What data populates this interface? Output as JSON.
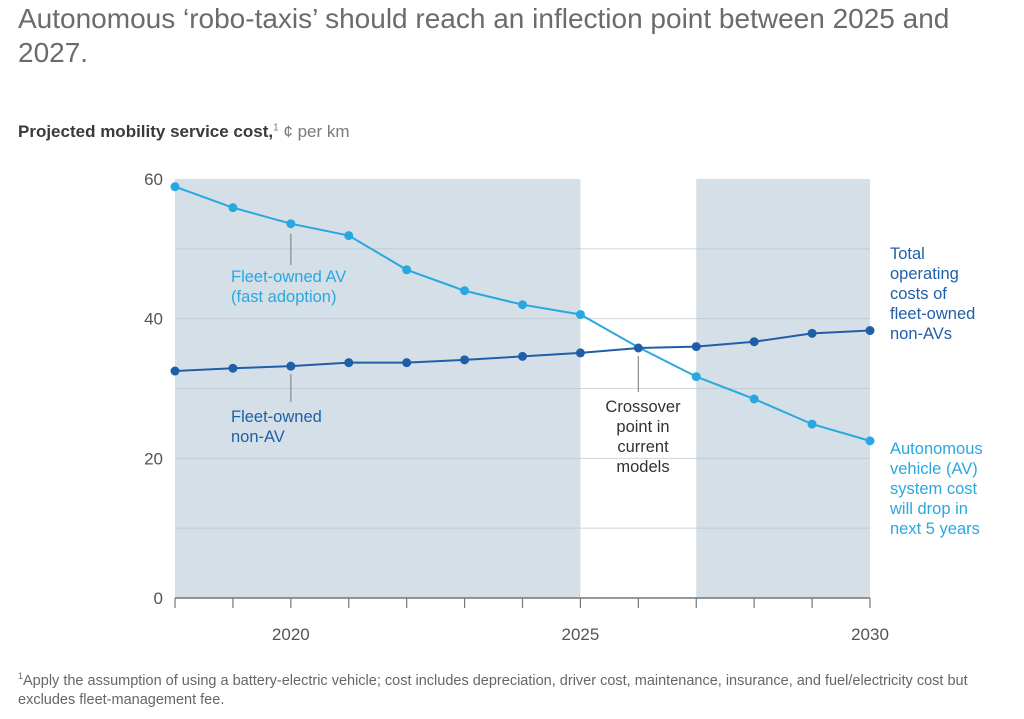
{
  "title": "Autonomous ‘robo-taxis’ should reach an inflection point between 2025 and 2027.",
  "subtitle": {
    "bold": "Projected mobility service cost,",
    "footnote_mark": "1",
    "unit": " ¢ per km"
  },
  "footnote": {
    "mark": "1",
    "text": "Apply the assumption of using a battery-electric vehicle; cost includes depreciation, driver cost, maintenance, insurance, and fuel/electricity cost but excludes fleet-management fee."
  },
  "colors": {
    "av": "#29a8e0",
    "non_av": "#1f5fa8",
    "shade": "#d5dfe7",
    "grid": "#b9c3cb",
    "axis": "#777777"
  },
  "chart_data": {
    "type": "line",
    "title": "Projected mobility service cost, ¢ per km",
    "xlabel": "",
    "ylabel": "¢ per km",
    "x": [
      2018,
      2019,
      2020,
      2021,
      2022,
      2023,
      2024,
      2025,
      2026,
      2027,
      2028,
      2029,
      2030
    ],
    "xlim": [
      2018,
      2030
    ],
    "ylim": [
      0,
      60
    ],
    "yticks": [
      0,
      20,
      40,
      60
    ],
    "ygrid": [
      10,
      20,
      30,
      40,
      50
    ],
    "xtick_labels": [
      2020,
      2025,
      2030
    ],
    "grid": true,
    "shaded_ranges": [
      [
        2018,
        2025
      ],
      [
        2027,
        2030
      ]
    ],
    "series": [
      {
        "name": "Fleet-owned AV (fast adoption)",
        "color": "#29a8e0",
        "values": [
          58.9,
          55.9,
          53.6,
          51.9,
          47.0,
          44.0,
          42.0,
          40.6,
          35.9,
          31.7,
          28.5,
          24.9,
          22.5
        ]
      },
      {
        "name": "Fleet-owned non-AV",
        "color": "#1f5fa8",
        "values": [
          32.5,
          32.9,
          33.2,
          33.7,
          33.7,
          34.1,
          34.6,
          35.1,
          35.8,
          36.0,
          36.7,
          37.9,
          38.3
        ]
      }
    ],
    "annotations": [
      {
        "id": "av_label",
        "lines": [
          "Fleet-owned AV",
          "(fast adoption)"
        ],
        "color": "#29a8e0",
        "anchor_x": 2020,
        "anchor_series": 0
      },
      {
        "id": "nonav_label",
        "lines": [
          "Fleet-owned",
          "non-AV"
        ],
        "color": "#1f5fa8",
        "anchor_x": 2020,
        "anchor_series": 1
      },
      {
        "id": "crossover_label",
        "lines": [
          "Crossover",
          "point in",
          "current",
          "models"
        ],
        "color": "#333333",
        "anchor_x": 2026,
        "anchor_series": 1
      },
      {
        "id": "nonav_end_label",
        "lines": [
          "Total",
          "operating",
          "costs of",
          "fleet-owned",
          "non-AVs"
        ],
        "color": "#1f5fa8"
      },
      {
        "id": "av_end_label",
        "lines": [
          "Autonomous",
          "vehicle (AV)",
          "system cost",
          "will drop in",
          "next 5 years"
        ],
        "color": "#29a8e0"
      }
    ]
  }
}
